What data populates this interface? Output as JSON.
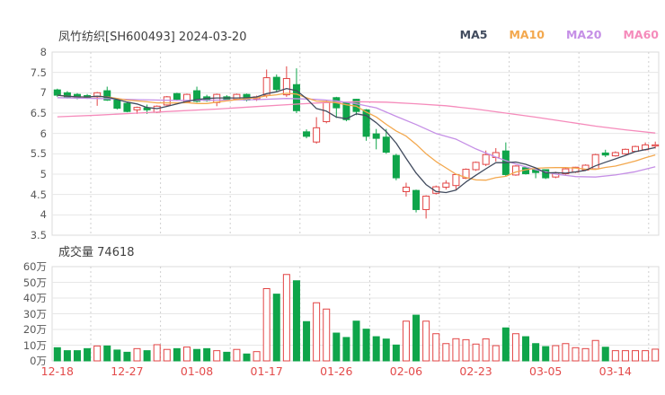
{
  "header": {
    "title": "凤竹纺织[SH600493] 2024-03-20",
    "legend": [
      {
        "label": "MA5",
        "color": "#414b5e"
      },
      {
        "label": "MA10",
        "color": "#f3a84e"
      },
      {
        "label": "MA20",
        "color": "#c58fe6"
      },
      {
        "label": "MA60",
        "color": "#f58bbb"
      }
    ]
  },
  "volume_header": {
    "label": "成交量",
    "value": "74618"
  },
  "colors": {
    "up": "#e24444",
    "down": "#0fa54a",
    "grid": "#e7e7e7",
    "border": "#dbdbdb",
    "vgrid": "#cfcfcf",
    "axis_text": "#595959",
    "xlabel_text": "#e34a4a"
  },
  "chart_data": {
    "type": "candlestick+volume",
    "title": "凤竹纺织[SH600493] 2024-03-20",
    "price_axis_ticks": [
      "8",
      "7.5",
      "7",
      "6.5",
      "6",
      "5.5",
      "5",
      "4.5",
      "4",
      "3.5"
    ],
    "price_range": [
      3.5,
      8
    ],
    "volume_axis_ticks": [
      "60万",
      "50万",
      "40万",
      "30万",
      "20万",
      "10万",
      "0万"
    ],
    "volume_range_wan": [
      0,
      60
    ],
    "x_labels": [
      {
        "text": "12-18",
        "bar": 0
      },
      {
        "text": "12-27",
        "bar": 7
      },
      {
        "text": "01-08",
        "bar": 14
      },
      {
        "text": "01-17",
        "bar": 21
      },
      {
        "text": "01-26",
        "bar": 28
      },
      {
        "text": "02-06",
        "bar": 35
      },
      {
        "text": "02-23",
        "bar": 42
      },
      {
        "text": "03-05",
        "bar": 49
      },
      {
        "text": "03-14",
        "bar": 56
      }
    ],
    "dates": [
      "12-18",
      "12-19",
      "12-20",
      "12-21",
      "12-22",
      "12-25",
      "12-26",
      "12-27",
      "12-28",
      "12-29",
      "01-02",
      "01-03",
      "01-04",
      "01-05",
      "01-08",
      "01-09",
      "01-10",
      "01-11",
      "01-12",
      "01-15",
      "01-16",
      "01-17",
      "01-18",
      "01-19",
      "01-22",
      "01-23",
      "01-24",
      "01-25",
      "01-26",
      "01-29",
      "01-30",
      "01-31",
      "02-01",
      "02-02",
      "02-05",
      "02-06",
      "02-07",
      "02-08",
      "02-19",
      "02-20",
      "02-21",
      "02-22",
      "02-23",
      "02-26",
      "02-27",
      "02-28",
      "02-29",
      "03-01",
      "03-04",
      "03-05",
      "03-06",
      "03-07",
      "03-08",
      "03-11",
      "03-12",
      "03-13",
      "03-14",
      "03-15",
      "03-18",
      "03-19",
      "03-20"
    ],
    "ohlc": [
      [
        7.07,
        7.1,
        6.9,
        6.94
      ],
      [
        7.0,
        7.04,
        6.86,
        6.89
      ],
      [
        6.96,
        6.99,
        6.84,
        6.87
      ],
      [
        6.93,
        6.97,
        6.85,
        6.88
      ],
      [
        6.9,
        7.02,
        6.68,
        7.0
      ],
      [
        7.05,
        7.15,
        6.8,
        6.82
      ],
      [
        6.82,
        6.84,
        6.59,
        6.62
      ],
      [
        6.74,
        6.76,
        6.52,
        6.54
      ],
      [
        6.58,
        6.66,
        6.48,
        6.64
      ],
      [
        6.63,
        6.71,
        6.48,
        6.58
      ],
      [
        6.52,
        6.69,
        6.5,
        6.67
      ],
      [
        6.7,
        6.92,
        6.68,
        6.9
      ],
      [
        6.98,
        7.0,
        6.8,
        6.84
      ],
      [
        6.78,
        6.98,
        6.76,
        6.96
      ],
      [
        7.05,
        7.15,
        6.76,
        6.79
      ],
      [
        6.9,
        6.95,
        6.78,
        6.81
      ],
      [
        6.76,
        6.98,
        6.67,
        6.96
      ],
      [
        6.9,
        6.94,
        6.8,
        6.84
      ],
      [
        6.84,
        6.98,
        6.82,
        6.96
      ],
      [
        6.96,
        6.98,
        6.79,
        6.82
      ],
      [
        6.85,
        6.93,
        6.8,
        6.9
      ],
      [
        6.94,
        7.57,
        6.88,
        7.37
      ],
      [
        7.38,
        7.45,
        7.02,
        7.08
      ],
      [
        6.95,
        7.65,
        6.9,
        7.35
      ],
      [
        7.2,
        7.6,
        6.5,
        6.56
      ],
      [
        6.04,
        6.1,
        5.88,
        5.93
      ],
      [
        5.79,
        6.4,
        5.75,
        6.14
      ],
      [
        6.29,
        6.82,
        6.25,
        6.76
      ],
      [
        6.88,
        6.9,
        6.38,
        6.63
      ],
      [
        6.76,
        6.78,
        6.3,
        6.34
      ],
      [
        6.84,
        6.85,
        6.45,
        6.54
      ],
      [
        6.58,
        6.6,
        5.82,
        5.93
      ],
      [
        5.99,
        6.11,
        5.61,
        5.88
      ],
      [
        5.91,
        6.11,
        5.5,
        5.54
      ],
      [
        5.46,
        5.5,
        4.85,
        4.91
      ],
      [
        4.57,
        4.79,
        4.45,
        4.68
      ],
      [
        4.6,
        4.62,
        4.06,
        4.13
      ],
      [
        4.13,
        4.48,
        3.91,
        4.46
      ],
      [
        4.53,
        4.72,
        4.5,
        4.69
      ],
      [
        4.68,
        4.85,
        4.62,
        4.78
      ],
      [
        4.72,
        5.0,
        4.61,
        4.99
      ],
      [
        4.9,
        5.14,
        4.88,
        5.12
      ],
      [
        5.11,
        5.31,
        5.08,
        5.29
      ],
      [
        5.24,
        5.58,
        5.2,
        5.48
      ],
      [
        5.41,
        5.64,
        5.31,
        5.53
      ],
      [
        5.57,
        5.78,
        4.95,
        4.99
      ],
      [
        4.98,
        5.22,
        4.96,
        5.2
      ],
      [
        5.16,
        5.18,
        4.99,
        5.01
      ],
      [
        5.11,
        5.13,
        4.9,
        5.04
      ],
      [
        5.11,
        5.12,
        4.88,
        4.91
      ],
      [
        4.93,
        5.06,
        4.9,
        5.03
      ],
      [
        5.01,
        5.15,
        4.99,
        5.13
      ],
      [
        5.05,
        5.18,
        5.03,
        5.17
      ],
      [
        5.1,
        5.24,
        5.08,
        5.22
      ],
      [
        5.13,
        5.5,
        5.11,
        5.48
      ],
      [
        5.52,
        5.6,
        5.42,
        5.47
      ],
      [
        5.45,
        5.56,
        5.43,
        5.53
      ],
      [
        5.5,
        5.63,
        5.48,
        5.61
      ],
      [
        5.56,
        5.7,
        5.54,
        5.68
      ],
      [
        5.6,
        5.78,
        5.58,
        5.72
      ],
      [
        5.7,
        5.8,
        5.63,
        5.72
      ]
    ],
    "volumes_wan": [
      8.4,
      6.5,
      6.5,
      7.8,
      9.5,
      9.5,
      6.9,
      5.5,
      7.8,
      6.5,
      10.3,
      7.3,
      7.8,
      8.8,
      7.3,
      7.8,
      6.5,
      5.5,
      7.3,
      4.4,
      5.9,
      46,
      42.5,
      55,
      51,
      25,
      37,
      33,
      17.7,
      14.9,
      25.3,
      20.2,
      15.4,
      13.9,
      10.1,
      25.3,
      29.1,
      25.3,
      17.3,
      11,
      14.1,
      13.5,
      10.7,
      14,
      9.7,
      21,
      17.3,
      15.4,
      11,
      9.1,
      9.7,
      11,
      8.4,
      7.8,
      13,
      8.7,
      6.5,
      6.5,
      6.5,
      6.5,
      7.46
    ],
    "latest_volume_hands": "74618",
    "ma20_points": [
      [
        0,
        6.88
      ],
      [
        4,
        6.86
      ],
      [
        8,
        6.83
      ],
      [
        12,
        6.81
      ],
      [
        16,
        6.82
      ],
      [
        20,
        6.83
      ],
      [
        23,
        6.86
      ],
      [
        26,
        6.84
      ],
      [
        28,
        6.8
      ],
      [
        30,
        6.73
      ],
      [
        32,
        6.63
      ],
      [
        34,
        6.42
      ],
      [
        36,
        6.22
      ],
      [
        38,
        6.0
      ],
      [
        40,
        5.86
      ],
      [
        42,
        5.62
      ],
      [
        44,
        5.42
      ],
      [
        46,
        5.25
      ],
      [
        48,
        5.11
      ],
      [
        50,
        5.0
      ],
      [
        52,
        4.94
      ],
      [
        54,
        4.93
      ],
      [
        56,
        4.98
      ],
      [
        58,
        5.06
      ],
      [
        60,
        5.18
      ]
    ],
    "ma60_points": [
      [
        0,
        6.41
      ],
      [
        4,
        6.45
      ],
      [
        8,
        6.5
      ],
      [
        12,
        6.55
      ],
      [
        16,
        6.6
      ],
      [
        20,
        6.66
      ],
      [
        24,
        6.72
      ],
      [
        27,
        6.76
      ],
      [
        30,
        6.78
      ],
      [
        33,
        6.77
      ],
      [
        36,
        6.73
      ],
      [
        39,
        6.68
      ],
      [
        42,
        6.6
      ],
      [
        45,
        6.5
      ],
      [
        48,
        6.4
      ],
      [
        51,
        6.29
      ],
      [
        54,
        6.18
      ],
      [
        57,
        6.09
      ],
      [
        60,
        6.01
      ]
    ],
    "legend_entries": [
      "MA5",
      "MA10",
      "MA20",
      "MA60"
    ],
    "grid": true,
    "legend_position": "top-right"
  }
}
